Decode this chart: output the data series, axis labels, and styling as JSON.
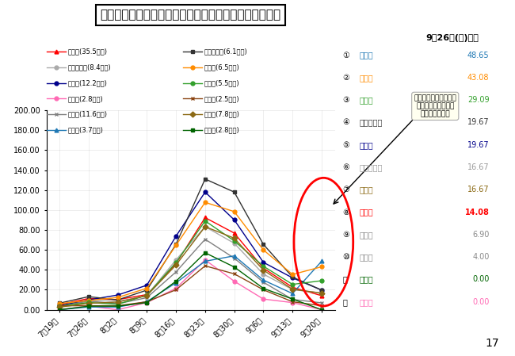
{
  "title": "県内１２市の直近１週間の１０万人当たり陽性者数推移",
  "subtitle": "9月26日(日)時点",
  "ylim": [
    0,
    200
  ],
  "yticks": [
    0,
    20,
    40,
    60,
    80,
    100,
    120,
    140,
    160,
    180,
    200
  ],
  "x_labels": [
    "7月19日",
    "7月26日",
    "8月2日",
    "8月9日",
    "8月16日",
    "8月23日",
    "8月30日",
    "9月6日",
    "9月13日",
    "9月20日"
  ],
  "annotation_text": "社会福祉施設における\nクラスター事案発生\n（奈良県発表）",
  "ranking": [
    {
      "rank": 1,
      "name": "葛城市",
      "value": 48.65,
      "color": "#1F78B4"
    },
    {
      "rank": 2,
      "name": "天理市",
      "value": 43.08,
      "color": "#FF8C00"
    },
    {
      "rank": 3,
      "name": "桜井市",
      "value": 29.09,
      "color": "#33A02C"
    },
    {
      "rank": 4,
      "name": "大和高田市",
      "value": 19.67,
      "color": "#333333"
    },
    {
      "rank": 5,
      "name": "橿原市",
      "value": 19.67,
      "color": "#00008B"
    },
    {
      "rank": 6,
      "name": "大和郡山市",
      "value": 16.67,
      "color": "#999999"
    },
    {
      "rank": 7,
      "name": "香芝市",
      "value": 16.67,
      "color": "#8B6914"
    },
    {
      "rank": 8,
      "name": "奈良市",
      "value": 14.08,
      "color": "#FF0000"
    },
    {
      "rank": 9,
      "name": "生駒市",
      "value": 6.9,
      "color": "#888888"
    },
    {
      "rank": 10,
      "name": "御所市",
      "value": 4.0,
      "color": "#888888"
    },
    {
      "rank": 11,
      "name": "宇陀市",
      "value": 0.0,
      "color": "#006400"
    },
    {
      "rank": 12,
      "name": "五條市",
      "value": 0.0,
      "color": "#FF69B4"
    }
  ],
  "legend_left": [
    {
      "name": "奈良市(35.5万人)",
      "color": "#FF0000",
      "marker": "^"
    },
    {
      "name": "大和郡山市(8.4万人)",
      "color": "#AAAAAA",
      "marker": "o"
    },
    {
      "name": "橿原市(12.2万人)",
      "color": "#00008B",
      "marker": "o"
    },
    {
      "name": "五條市(2.8万人)",
      "color": "#FF69B4",
      "marker": "o"
    },
    {
      "name": "生駒市(11.6万人)",
      "color": "#808080",
      "marker": "x"
    },
    {
      "name": "葛城市(3.7万人)",
      "color": "#1F78B4",
      "marker": "^"
    }
  ],
  "legend_right": [
    {
      "name": "大和高田市(6.1万人)",
      "color": "#333333",
      "marker": "s"
    },
    {
      "name": "天理市(6.5万人)",
      "color": "#FF8C00",
      "marker": "o"
    },
    {
      "name": "桜井市(5.5万人)",
      "color": "#33A02C",
      "marker": "o"
    },
    {
      "name": "御所市(2.5万人)",
      "color": "#8B4513",
      "marker": "x"
    },
    {
      "name": "香芝市(7.8万人)",
      "color": "#8B6914",
      "marker": "D"
    },
    {
      "name": "宇陀市(2.8万人)",
      "color": "#006400",
      "marker": "s"
    }
  ],
  "series": [
    {
      "name": "奈良市(35.5万人)",
      "color": "#FF0000",
      "marker": "^",
      "data": [
        5.07,
        11.27,
        10.14,
        15.21,
        46.2,
        92.39,
        76.9,
        41.69,
        22.54,
        14.08
      ]
    },
    {
      "name": "大和郡山市(8.4万人)",
      "color": "#AAAAAA",
      "marker": "o",
      "data": [
        3.57,
        9.52,
        8.33,
        14.29,
        50.0,
        83.33,
        66.67,
        35.71,
        20.24,
        16.67
      ]
    },
    {
      "name": "橿原市(12.2万人)",
      "color": "#00008B",
      "marker": "o",
      "data": [
        4.1,
        9.84,
        14.75,
        24.59,
        73.77,
        118.03,
        90.16,
        47.54,
        31.97,
        19.67
      ]
    },
    {
      "name": "五條市(2.8万人)",
      "color": "#FF69B4",
      "marker": "o",
      "data": [
        0.0,
        3.57,
        0.0,
        7.14,
        21.43,
        50.0,
        28.57,
        10.71,
        7.14,
        0.0
      ]
    },
    {
      "name": "生駒市(11.6万人)",
      "color": "#808080",
      "marker": "x",
      "data": [
        3.45,
        8.62,
        6.03,
        12.07,
        37.93,
        70.69,
        51.72,
        27.59,
        10.34,
        6.9
      ]
    },
    {
      "name": "葛城市(3.7万人)",
      "color": "#1F78B4",
      "marker": "^",
      "data": [
        0.0,
        2.7,
        2.7,
        8.11,
        27.03,
        48.65,
        54.05,
        29.73,
        16.22,
        48.65
      ]
    },
    {
      "name": "大和高田市(6.1万人)",
      "color": "#333333",
      "marker": "s",
      "data": [
        6.56,
        13.11,
        9.84,
        19.67,
        65.57,
        131.15,
        118.03,
        65.57,
        32.79,
        19.67
      ]
    },
    {
      "name": "天理市(6.5万人)",
      "color": "#FF8C00",
      "marker": "o",
      "data": [
        6.15,
        9.23,
        12.31,
        21.54,
        64.62,
        107.69,
        98.46,
        60.0,
        35.38,
        43.08
      ]
    },
    {
      "name": "桜井市(5.5万人)",
      "color": "#33A02C",
      "marker": "o",
      "data": [
        3.64,
        7.27,
        5.45,
        14.55,
        47.27,
        89.09,
        69.09,
        43.64,
        25.45,
        29.09
      ]
    },
    {
      "name": "御所市(2.5万人)",
      "color": "#8B4513",
      "marker": "x",
      "data": [
        4.0,
        4.0,
        4.0,
        8.0,
        20.0,
        44.0,
        36.0,
        20.0,
        8.0,
        4.0
      ]
    },
    {
      "name": "香芝市(7.8万人)",
      "color": "#8B6914",
      "marker": "D",
      "data": [
        2.56,
        6.41,
        7.69,
        14.1,
        44.87,
        83.33,
        71.79,
        39.74,
        20.51,
        16.67
      ]
    },
    {
      "name": "宇陀市(2.8万人)",
      "color": "#006400",
      "marker": "s",
      "data": [
        0.0,
        3.57,
        3.57,
        7.14,
        28.57,
        57.14,
        42.86,
        21.43,
        10.71,
        0.0
      ]
    }
  ]
}
